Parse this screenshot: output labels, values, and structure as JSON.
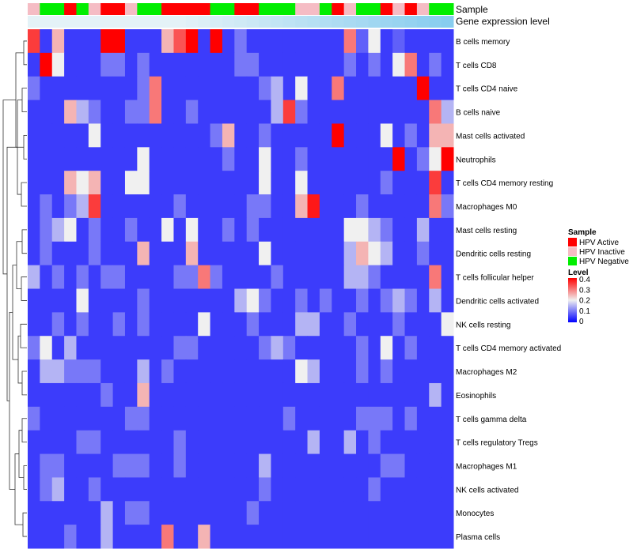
{
  "chart_data": {
    "type": "heatmap",
    "title": "",
    "annotation_tracks": [
      "Sample",
      "Gene expression level"
    ],
    "row_labels": [
      "B cells memory",
      "T cells CD8",
      "T cells CD4 naive",
      "B cells naive",
      "Mast cells activated",
      "Neutrophils",
      "T cells CD4 memory resting",
      "Macrophages M0",
      "Mast cells resting",
      "Dendritic cells resting",
      "T cells follicular helper",
      "Dendritic cells activated",
      "NK cells resting",
      "T cells CD4 memory activated",
      "Macrophages M2",
      "Eosinophils",
      "T cells gamma delta",
      "T cells regulatory  Tregs",
      "Macrophages M1",
      "NK cells activated",
      "Monocytes",
      "Plasma cells"
    ],
    "sample_groups": [
      "HPV Inactive",
      "HPV Negative",
      "HPV Negative",
      "HPV Active",
      "HPV Negative",
      "HPV Inactive",
      "HPV Active",
      "HPV Active",
      "HPV Inactive",
      "HPV Negative",
      "HPV Negative",
      "HPV Active",
      "HPV Active",
      "HPV Active",
      "HPV Active",
      "HPV Negative",
      "HPV Negative",
      "HPV Active",
      "HPV Active",
      "HPV Negative",
      "HPV Negative",
      "HPV Negative",
      "HPV Inactive",
      "HPV Inactive",
      "HPV Negative",
      "HPV Active",
      "HPV Inactive",
      "HPV Negative",
      "HPV Negative",
      "HPV Active",
      "HPV Inactive",
      "HPV Active",
      "HPV Inactive",
      "HPV Negative",
      "HPV Negative"
    ],
    "expression_ramp": {
      "low": "#e4f2f7",
      "high": "#87cdef",
      "step_columns": 12
    },
    "values": [
      [
        0.35,
        0.05,
        0.25,
        0.05,
        0.05,
        0.05,
        0.4,
        0.4,
        0.05,
        0.05,
        0.05,
        0.25,
        0.33,
        0.4,
        0.05,
        0.4,
        0.05,
        0.1,
        0.05,
        0.05,
        0.05,
        0.05,
        0.05,
        0.05,
        0.05,
        0.05,
        0.3,
        0.08,
        0.2,
        0.05,
        0.08,
        0.05,
        0.05,
        0.05,
        0.05
      ],
      [
        0.05,
        0.4,
        0.2,
        0.05,
        0.05,
        0.05,
        0.1,
        0.1,
        0.05,
        0.1,
        0.05,
        0.05,
        0.05,
        0.05,
        0.05,
        0.05,
        0.05,
        0.1,
        0.1,
        0.05,
        0.05,
        0.05,
        0.05,
        0.05,
        0.05,
        0.05,
        0.1,
        0.05,
        0.1,
        0.05,
        0.2,
        0.3,
        0.05,
        0.1,
        0.05
      ],
      [
        0.1,
        0.05,
        0.05,
        0.05,
        0.05,
        0.05,
        0.05,
        0.05,
        0.05,
        0.1,
        0.3,
        0.05,
        0.05,
        0.05,
        0.05,
        0.05,
        0.05,
        0.05,
        0.05,
        0.1,
        0.15,
        0.05,
        0.2,
        0.05,
        0.05,
        0.3,
        0.05,
        0.05,
        0.05,
        0.05,
        0.05,
        0.05,
        0.4,
        0.05,
        0.05
      ],
      [
        0.05,
        0.05,
        0.05,
        0.25,
        0.15,
        0.1,
        0.05,
        0.05,
        0.1,
        0.1,
        0.3,
        0.05,
        0.05,
        0.1,
        0.05,
        0.05,
        0.05,
        0.05,
        0.05,
        0.05,
        0.15,
        0.35,
        0.1,
        0.05,
        0.05,
        0.05,
        0.05,
        0.05,
        0.05,
        0.05,
        0.05,
        0.05,
        0.05,
        0.3,
        0.15
      ],
      [
        0.05,
        0.05,
        0.05,
        0.05,
        0.05,
        0.2,
        0.05,
        0.05,
        0.05,
        0.05,
        0.05,
        0.05,
        0.05,
        0.05,
        0.05,
        0.1,
        0.25,
        0.05,
        0.05,
        0.1,
        0.05,
        0.05,
        0.05,
        0.05,
        0.05,
        0.4,
        0.05,
        0.05,
        0.05,
        0.2,
        0.05,
        0.1,
        0.05,
        0.25,
        0.25
      ],
      [
        0.05,
        0.05,
        0.05,
        0.05,
        0.05,
        0.05,
        0.05,
        0.05,
        0.05,
        0.2,
        0.05,
        0.05,
        0.05,
        0.05,
        0.05,
        0.05,
        0.1,
        0.05,
        0.05,
        0.2,
        0.05,
        0.05,
        0.1,
        0.05,
        0.05,
        0.05,
        0.05,
        0.05,
        0.05,
        0.05,
        0.4,
        0.05,
        0.1,
        0.2,
        0.4
      ],
      [
        0.05,
        0.05,
        0.05,
        0.25,
        0.2,
        0.25,
        0.05,
        0.05,
        0.2,
        0.2,
        0.05,
        0.05,
        0.05,
        0.05,
        0.05,
        0.05,
        0.05,
        0.05,
        0.05,
        0.2,
        0.05,
        0.05,
        0.2,
        0.05,
        0.05,
        0.05,
        0.05,
        0.05,
        0.05,
        0.1,
        0.05,
        0.05,
        0.05,
        0.35,
        0.05
      ],
      [
        0.05,
        0.1,
        0.05,
        0.1,
        0.15,
        0.35,
        0.05,
        0.05,
        0.05,
        0.05,
        0.05,
        0.05,
        0.1,
        0.05,
        0.05,
        0.05,
        0.05,
        0.05,
        0.1,
        0.1,
        0.05,
        0.05,
        0.25,
        0.38,
        0.05,
        0.05,
        0.05,
        0.1,
        0.05,
        0.05,
        0.05,
        0.05,
        0.05,
        0.3,
        0.1
      ],
      [
        0.05,
        0.1,
        0.15,
        0.2,
        0.05,
        0.1,
        0.05,
        0.05,
        0.1,
        0.05,
        0.05,
        0.2,
        0.05,
        0.2,
        0.05,
        0.05,
        0.1,
        0.05,
        0.1,
        0.05,
        0.05,
        0.05,
        0.05,
        0.05,
        0.05,
        0.05,
        0.2,
        0.2,
        0.15,
        0.1,
        0.05,
        0.05,
        0.15,
        0.05,
        0.05
      ],
      [
        0.05,
        0.1,
        0.05,
        0.05,
        0.05,
        0.1,
        0.05,
        0.05,
        0.05,
        0.25,
        0.05,
        0.05,
        0.05,
        0.25,
        0.05,
        0.05,
        0.05,
        0.05,
        0.05,
        0.2,
        0.05,
        0.05,
        0.05,
        0.05,
        0.05,
        0.05,
        0.15,
        0.25,
        0.2,
        0.15,
        0.05,
        0.05,
        0.1,
        0.05,
        0.05
      ],
      [
        0.15,
        0.05,
        0.1,
        0.05,
        0.1,
        0.05,
        0.1,
        0.1,
        0.05,
        0.05,
        0.05,
        0.05,
        0.1,
        0.1,
        0.3,
        0.1,
        0.05,
        0.05,
        0.05,
        0.05,
        0.1,
        0.05,
        0.05,
        0.05,
        0.05,
        0.05,
        0.15,
        0.15,
        0.1,
        0.05,
        0.05,
        0.05,
        0.05,
        0.3,
        0.05
      ],
      [
        0.05,
        0.05,
        0.05,
        0.05,
        0.2,
        0.05,
        0.05,
        0.05,
        0.05,
        0.1,
        0.05,
        0.05,
        0.05,
        0.05,
        0.05,
        0.05,
        0.05,
        0.15,
        0.2,
        0.1,
        0.05,
        0.05,
        0.1,
        0.05,
        0.1,
        0.05,
        0.05,
        0.1,
        0.05,
        0.1,
        0.15,
        0.1,
        0.05,
        0.15,
        0.05
      ],
      [
        0.05,
        0.05,
        0.1,
        0.05,
        0.1,
        0.05,
        0.05,
        0.1,
        0.05,
        0.1,
        0.05,
        0.05,
        0.05,
        0.05,
        0.2,
        0.05,
        0.05,
        0.05,
        0.1,
        0.05,
        0.05,
        0.05,
        0.15,
        0.15,
        0.05,
        0.05,
        0.1,
        0.05,
        0.05,
        0.05,
        0.1,
        0.05,
        0.05,
        0.05,
        0.2
      ],
      [
        0.1,
        0.2,
        0.05,
        0.15,
        0.05,
        0.05,
        0.05,
        0.05,
        0.05,
        0.05,
        0.05,
        0.05,
        0.1,
        0.1,
        0.05,
        0.05,
        0.05,
        0.05,
        0.05,
        0.1,
        0.15,
        0.1,
        0.05,
        0.05,
        0.05,
        0.05,
        0.05,
        0.1,
        0.05,
        0.2,
        0.05,
        0.1,
        0.05,
        0.05,
        0.05
      ],
      [
        0.05,
        0.15,
        0.15,
        0.1,
        0.1,
        0.1,
        0.05,
        0.05,
        0.05,
        0.15,
        0.05,
        0.1,
        0.05,
        0.05,
        0.05,
        0.05,
        0.05,
        0.05,
        0.05,
        0.05,
        0.05,
        0.05,
        0.2,
        0.15,
        0.05,
        0.05,
        0.05,
        0.1,
        0.05,
        0.1,
        0.05,
        0.05,
        0.05,
        0.05,
        0.05
      ],
      [
        0.05,
        0.05,
        0.05,
        0.05,
        0.05,
        0.05,
        0.1,
        0.05,
        0.05,
        0.25,
        0.05,
        0.05,
        0.05,
        0.05,
        0.05,
        0.05,
        0.05,
        0.05,
        0.05,
        0.05,
        0.05,
        0.05,
        0.05,
        0.05,
        0.05,
        0.05,
        0.05,
        0.05,
        0.05,
        0.05,
        0.05,
        0.05,
        0.05,
        0.15,
        0.05
      ],
      [
        0.1,
        0.05,
        0.05,
        0.05,
        0.05,
        0.05,
        0.05,
        0.05,
        0.1,
        0.1,
        0.05,
        0.05,
        0.05,
        0.05,
        0.05,
        0.05,
        0.05,
        0.05,
        0.05,
        0.05,
        0.05,
        0.1,
        0.05,
        0.05,
        0.05,
        0.05,
        0.05,
        0.1,
        0.1,
        0.1,
        0.05,
        0.1,
        0.05,
        0.05,
        0.05
      ],
      [
        0.05,
        0.05,
        0.05,
        0.05,
        0.1,
        0.1,
        0.05,
        0.05,
        0.05,
        0.05,
        0.05,
        0.05,
        0.1,
        0.05,
        0.05,
        0.05,
        0.05,
        0.05,
        0.05,
        0.05,
        0.05,
        0.05,
        0.05,
        0.15,
        0.05,
        0.05,
        0.15,
        0.05,
        0.1,
        0.05,
        0.05,
        0.05,
        0.05,
        0.05,
        0.05
      ],
      [
        0.05,
        0.1,
        0.1,
        0.05,
        0.05,
        0.05,
        0.05,
        0.1,
        0.1,
        0.1,
        0.05,
        0.05,
        0.1,
        0.05,
        0.05,
        0.05,
        0.05,
        0.05,
        0.05,
        0.15,
        0.05,
        0.05,
        0.05,
        0.05,
        0.05,
        0.05,
        0.05,
        0.05,
        0.05,
        0.1,
        0.1,
        0.05,
        0.05,
        0.05,
        0.05
      ],
      [
        0.05,
        0.1,
        0.15,
        0.05,
        0.05,
        0.1,
        0.05,
        0.05,
        0.05,
        0.05,
        0.05,
        0.05,
        0.05,
        0.05,
        0.05,
        0.05,
        0.05,
        0.05,
        0.05,
        0.1,
        0.05,
        0.05,
        0.05,
        0.05,
        0.05,
        0.05,
        0.05,
        0.05,
        0.1,
        0.05,
        0.05,
        0.05,
        0.05,
        0.05,
        0.05
      ],
      [
        0.05,
        0.05,
        0.05,
        0.05,
        0.05,
        0.05,
        0.15,
        0.05,
        0.1,
        0.1,
        0.05,
        0.05,
        0.05,
        0.05,
        0.05,
        0.05,
        0.05,
        0.05,
        0.1,
        0.05,
        0.05,
        0.05,
        0.05,
        0.05,
        0.05,
        0.05,
        0.05,
        0.05,
        0.05,
        0.05,
        0.05,
        0.05,
        0.05,
        0.05,
        0.05
      ],
      [
        0.05,
        0.05,
        0.05,
        0.1,
        0.05,
        0.05,
        0.15,
        0.05,
        0.05,
        0.05,
        0.05,
        0.3,
        0.05,
        0.05,
        0.25,
        0.05,
        0.05,
        0.05,
        0.05,
        0.05,
        0.05,
        0.05,
        0.05,
        0.05,
        0.05,
        0.05,
        0.05,
        0.05,
        0.05,
        0.05,
        0.05,
        0.05,
        0.05,
        0.05,
        0.05
      ]
    ],
    "color_scale": {
      "low": "#0000ff",
      "mid": "#f0f0f0",
      "high": "#ff0000",
      "min": 0,
      "mid_value": 0.2,
      "max": 0.4
    },
    "legends": {
      "sample": {
        "title": "Sample",
        "items": [
          {
            "label": "HPV Active",
            "color": "#ff0000"
          },
          {
            "label": "HPV Inactive",
            "color": "#f5bcc4"
          },
          {
            "label": "HPV Negative",
            "color": "#00ee00"
          }
        ]
      },
      "level": {
        "title": "Level",
        "ticks": [
          "0.4",
          "0.3",
          "0.2",
          "0.1",
          "0"
        ]
      }
    },
    "row_dendrogram": true
  }
}
